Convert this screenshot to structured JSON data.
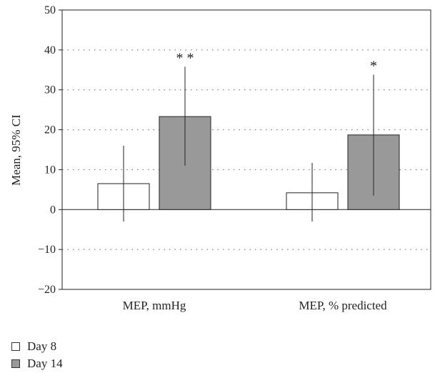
{
  "chart_data": {
    "type": "bar",
    "title": "",
    "xlabel": "",
    "ylabel": "Mean, 95% CI",
    "ylim": [
      -20,
      50
    ],
    "yticks": [
      50,
      40,
      30,
      20,
      10,
      0,
      -10,
      -20
    ],
    "ytick_labels": [
      "50",
      "40",
      "30",
      "20",
      "10",
      "0",
      "−10",
      "−20"
    ],
    "grid": "dotted horizontal",
    "categories": [
      "MEP, mmHg",
      "MEP, % predicted"
    ],
    "series": [
      {
        "name": "Day 8",
        "color": "#ffffff",
        "values": [
          6.5,
          4.2
        ],
        "ci_low": [
          -3,
          -3
        ],
        "ci_high": [
          16,
          11.7
        ],
        "annotations": [
          "",
          ""
        ]
      },
      {
        "name": "Day 14",
        "color": "#999999",
        "values": [
          23.3,
          18.7
        ],
        "ci_low": [
          11,
          3.5
        ],
        "ci_high": [
          35.8,
          33.8
        ],
        "annotations": [
          "**",
          "*"
        ]
      }
    ],
    "legend_position": "bottom-left"
  }
}
